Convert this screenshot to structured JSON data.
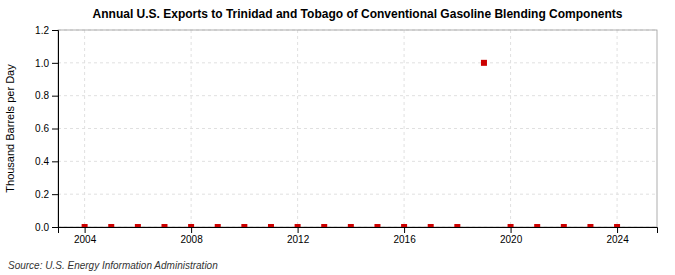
{
  "chart_data": {
    "type": "scatter",
    "title": "Annual U.S. Exports to Trinidad and Tobago of Conventional Gasoline Blending Components",
    "ylabel": "Thousand Barrels per Day",
    "annotations": [
      "Source: U.S. Energy Information Administration"
    ],
    "x": [
      2004,
      2005,
      2006,
      2007,
      2008,
      2009,
      2010,
      2011,
      2012,
      2013,
      2014,
      2015,
      2016,
      2017,
      2018,
      2019,
      2020,
      2021,
      2022,
      2023,
      2024
    ],
    "values": [
      0.0,
      0.0,
      0.0,
      0.0,
      0.0,
      0.0,
      0.0,
      0.0,
      0.0,
      0.0,
      0.0,
      0.0,
      0.0,
      0.0,
      0.0,
      1.0,
      0.0,
      0.0,
      0.0,
      0.0,
      0.0
    ],
    "color": "#cc0000",
    "marker": "square",
    "xlim": [
      2003.0,
      2025.5
    ],
    "ylim": [
      0.0,
      1.2
    ],
    "xticks": [
      2004,
      2008,
      2012,
      2016,
      2020,
      2024
    ],
    "yticks": [
      {
        "value": 0.0,
        "label": "0.0"
      },
      {
        "value": 0.2,
        "label": "0.2"
      },
      {
        "value": 0.4,
        "label": "0.4"
      },
      {
        "value": 0.6,
        "label": "0.6"
      },
      {
        "value": 0.8,
        "label": "0.8"
      },
      {
        "value": 1.0,
        "label": "1.0"
      },
      {
        "value": 1.2,
        "label": "1.2"
      }
    ],
    "grid": true
  }
}
